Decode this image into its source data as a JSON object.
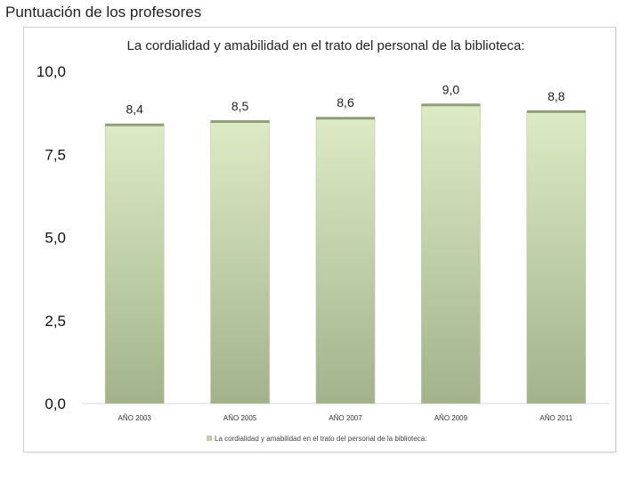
{
  "page": {
    "heading": "Puntuación de los profesores"
  },
  "chart_data": {
    "type": "bar",
    "title": "La cordialidad y amabilidad en el trato del personal de la biblioteca:",
    "categories": [
      "AÑO 2003",
      "AÑO 2005",
      "AÑO 2007",
      "AÑO 2009",
      "AÑO 2011"
    ],
    "series": [
      {
        "name": "La cordialidad y amabilidad en el trato del personal de la biblioteca:",
        "values": [
          8.4,
          8.5,
          8.6,
          9.0,
          8.8
        ],
        "labels": [
          "8,4",
          "8,5",
          "8,6",
          "9,0",
          "8,8"
        ]
      }
    ],
    "ylim": [
      0,
      10
    ],
    "yticks": [
      0,
      2.5,
      5,
      7.5,
      10
    ],
    "ytick_labels": [
      "0,0",
      "2,5",
      "5,0",
      "7,5",
      "10,0"
    ],
    "grid": false,
    "legend_position": "bottom",
    "colors": {
      "bar_top": "#dcebc4",
      "bar_bottom": "#a2b38b",
      "bar_cap": "#8f9e7a"
    }
  }
}
